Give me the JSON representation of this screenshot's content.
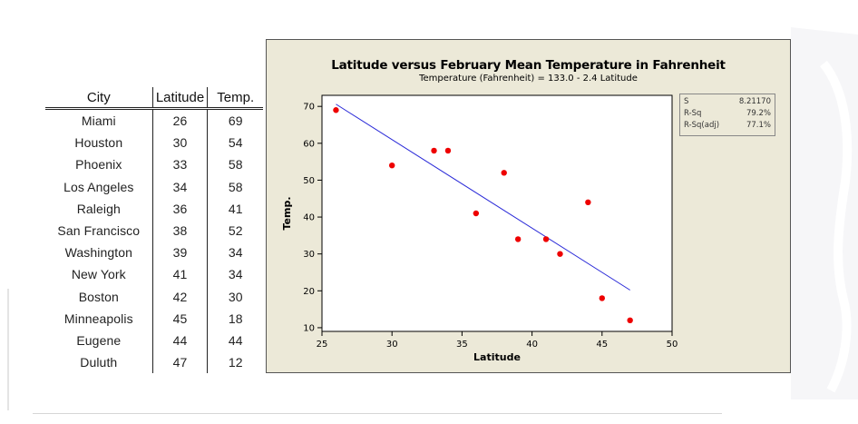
{
  "table": {
    "headers": [
      "City",
      "Latitude",
      "Temp."
    ],
    "rows": [
      {
        "city": "Miami",
        "lat": "26",
        "temp": "69"
      },
      {
        "city": "Houston",
        "lat": "30",
        "temp": "54"
      },
      {
        "city": "Phoenix",
        "lat": "33",
        "temp": "58"
      },
      {
        "city": "Los Angeles",
        "lat": "34",
        "temp": "58"
      },
      {
        "city": "Raleigh",
        "lat": "36",
        "temp": "41"
      },
      {
        "city": "San Francisco",
        "lat": "38",
        "temp": "52"
      },
      {
        "city": "Washington",
        "lat": "39",
        "temp": "34"
      },
      {
        "city": "New York",
        "lat": "41",
        "temp": "34"
      },
      {
        "city": "Boston",
        "lat": "42",
        "temp": "30"
      },
      {
        "city": "Minneapolis",
        "lat": "45",
        "temp": "18"
      },
      {
        "city": "Eugene",
        "lat": "44",
        "temp": "44"
      },
      {
        "city": "Duluth",
        "lat": "47",
        "temp": "12"
      }
    ]
  },
  "stats": {
    "rows": [
      {
        "label": "S",
        "value": "8.21170"
      },
      {
        "label": "R-Sq",
        "value": "79.2%"
      },
      {
        "label": "R-Sq(adj)",
        "value": "77.1%"
      }
    ]
  },
  "chart_data": {
    "type": "scatter",
    "title": "Latitude versus February Mean Temperature in Fahrenheit",
    "subtitle": "Temperature (Fahrenheit) = 133.0 - 2.4  Latitude",
    "xlabel": "Latitude",
    "ylabel": "Temp.",
    "xlim": [
      25,
      50
    ],
    "ylim": [
      9,
      73
    ],
    "xticks": [
      25,
      30,
      35,
      40,
      45,
      50
    ],
    "yticks": [
      10,
      20,
      30,
      40,
      50,
      60,
      70
    ],
    "points": [
      {
        "x": 26,
        "y": 69
      },
      {
        "x": 30,
        "y": 54
      },
      {
        "x": 33,
        "y": 58
      },
      {
        "x": 34,
        "y": 58
      },
      {
        "x": 36,
        "y": 41
      },
      {
        "x": 38,
        "y": 52
      },
      {
        "x": 39,
        "y": 34
      },
      {
        "x": 41,
        "y": 34
      },
      {
        "x": 42,
        "y": 30
      },
      {
        "x": 45,
        "y": 18
      },
      {
        "x": 44,
        "y": 44
      },
      {
        "x": 47,
        "y": 12
      }
    ],
    "fit_line": {
      "intercept": 133.0,
      "slope": -2.4,
      "x_from": 26,
      "x_to": 47
    },
    "colors": {
      "points": "#ee0000",
      "line": "#2a2ad8",
      "panel": "#ece9d8"
    }
  }
}
